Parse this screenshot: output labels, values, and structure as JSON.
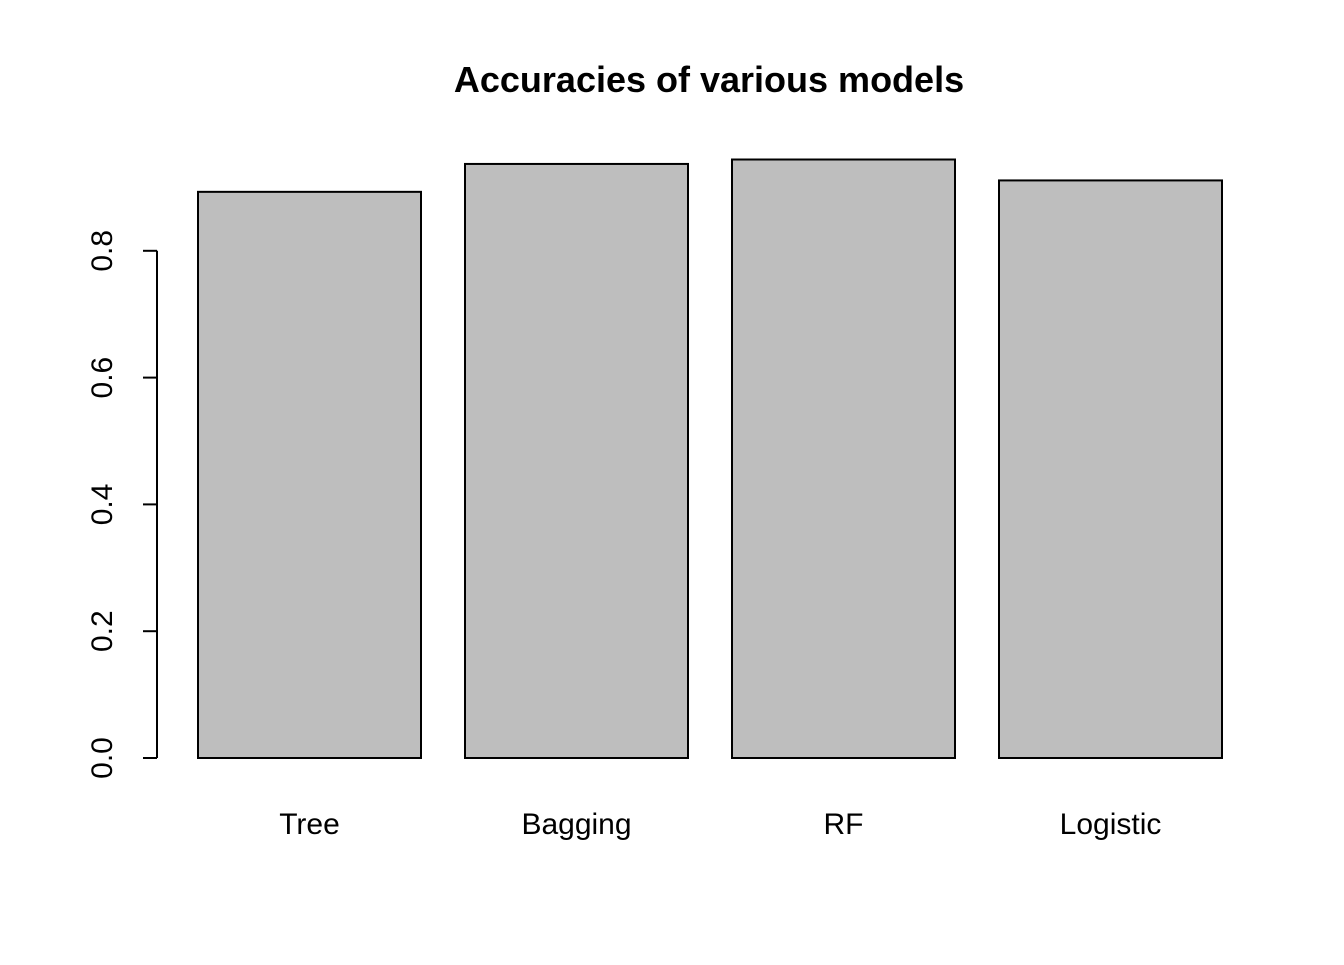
{
  "chart_data": {
    "type": "bar",
    "title": "Accuracies of various models",
    "xlabel": "",
    "ylabel": "",
    "categories": [
      "Tree",
      "Bagging",
      "RF",
      "Logistic"
    ],
    "values": [
      0.893,
      0.937,
      0.944,
      0.911
    ],
    "ylim": [
      0,
      0.944
    ],
    "yticks": [
      0.0,
      0.2,
      0.4,
      0.6,
      0.8
    ],
    "ytick_labels": [
      "0.0",
      "0.2",
      "0.4",
      "0.6",
      "0.8"
    ],
    "grid": false,
    "legend": "none",
    "colors": {
      "bar_fill": "#bebebe",
      "bar_stroke": "#000000",
      "axis": "#000000",
      "background": "#ffffff"
    }
  }
}
